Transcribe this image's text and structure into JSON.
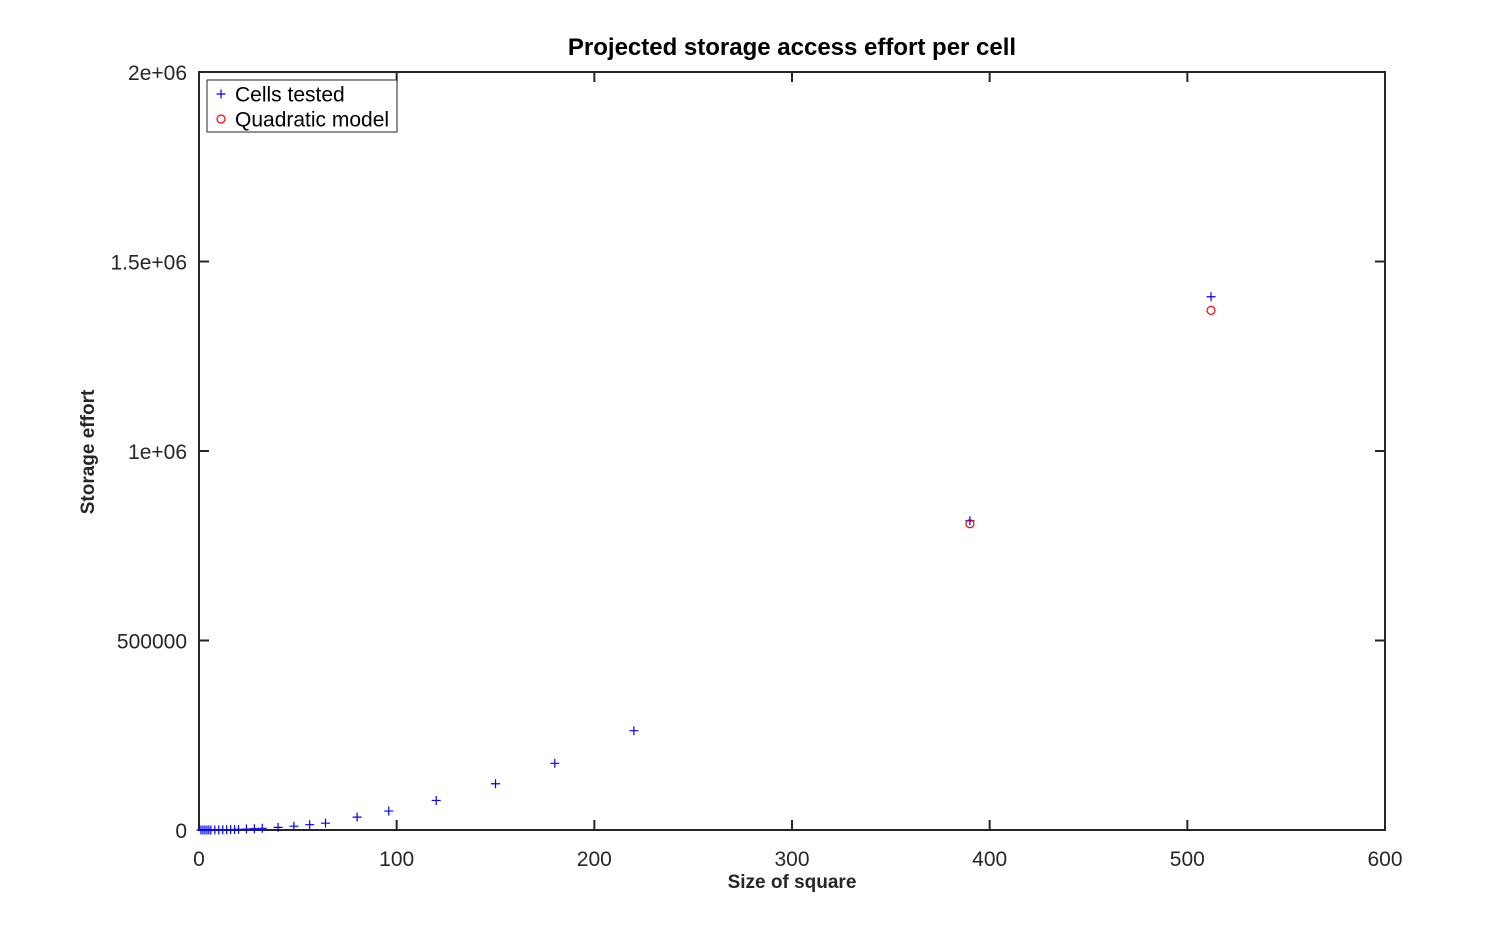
{
  "chart_data": {
    "type": "scatter",
    "title": "Projected storage access effort per cell",
    "xlabel": "Size of square",
    "ylabel": "Storage effort",
    "xlim": [
      0,
      600
    ],
    "ylim": [
      0,
      2000000
    ],
    "x_ticks": [
      0,
      100,
      200,
      300,
      400,
      500,
      600
    ],
    "x_tick_labels": [
      "0",
      "100",
      "200",
      "300",
      "400",
      "500",
      "600"
    ],
    "y_ticks": [
      0,
      500000,
      1000000,
      1500000,
      2000000
    ],
    "y_tick_labels": [
      "0",
      "500000",
      "1e+06",
      "1.5e+06",
      "2e+06"
    ],
    "grid": false,
    "legend_position": "top-left",
    "series": [
      {
        "name": "Cells tested",
        "marker": "plus",
        "color": "#0000ff",
        "points": [
          [
            1,
            0
          ],
          [
            2,
            0
          ],
          [
            3,
            0
          ],
          [
            4,
            0
          ],
          [
            5,
            100
          ],
          [
            6,
            150
          ],
          [
            8,
            250
          ],
          [
            10,
            400
          ],
          [
            12,
            600
          ],
          [
            14,
            800
          ],
          [
            16,
            1100
          ],
          [
            18,
            1400
          ],
          [
            20,
            1700
          ],
          [
            24,
            2500
          ],
          [
            28,
            3400
          ],
          [
            32,
            4500
          ],
          [
            40,
            7000
          ],
          [
            48,
            10000
          ],
          [
            56,
            14000
          ],
          [
            64,
            18000
          ],
          [
            80,
            34000
          ],
          [
            96,
            50000
          ],
          [
            120,
            78000
          ],
          [
            150,
            122000
          ],
          [
            180,
            176000
          ],
          [
            220,
            262000
          ],
          [
            390,
            816000
          ],
          [
            512,
            1407000
          ]
        ]
      },
      {
        "name": "Quadratic model",
        "marker": "circle",
        "color": "#ff0000",
        "points": [
          [
            390,
            808000
          ],
          [
            512,
            1371000
          ]
        ]
      }
    ]
  }
}
